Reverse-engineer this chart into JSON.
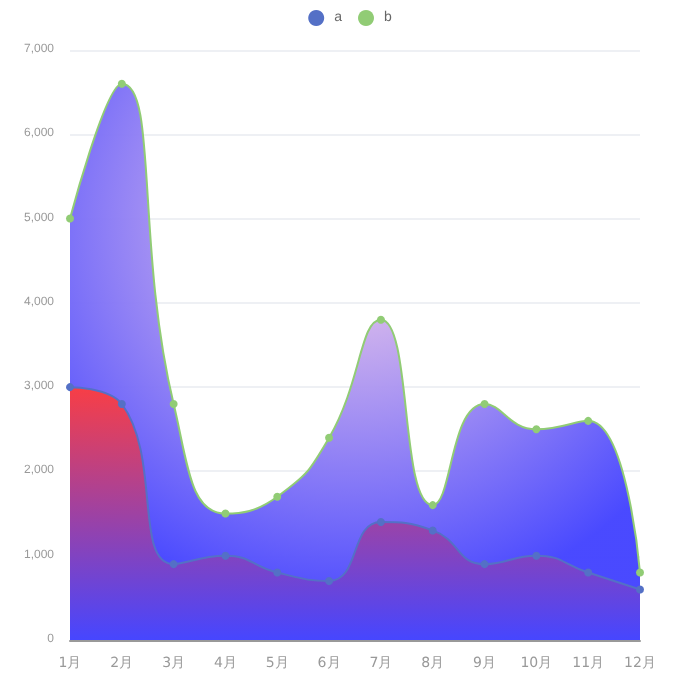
{
  "chart_data": {
    "type": "area",
    "categories": [
      "1月",
      "2月",
      "3月",
      "4月",
      "5月",
      "6月",
      "7月",
      "8月",
      "9月",
      "10月",
      "11月",
      "12月"
    ],
    "series": [
      {
        "name": "a",
        "color": "#5470c6",
        "values": [
          3000,
          2800,
          900,
          1000,
          800,
          700,
          1400,
          1300,
          900,
          1000,
          800,
          600
        ]
      },
      {
        "name": "b",
        "color": "#91cc75",
        "values": [
          5000,
          6600,
          2800,
          1500,
          1700,
          2400,
          3800,
          1600,
          2800,
          2500,
          2600,
          800
        ]
      }
    ],
    "ylim": [
      0,
      7000
    ],
    "yticks": [
      {
        "value": 0,
        "label": "0"
      },
      {
        "value": 1000,
        "label": "1,000"
      },
      {
        "value": 2000,
        "label": "2,000"
      },
      {
        "value": 3000,
        "label": "3,000"
      },
      {
        "value": 4000,
        "label": "4,000"
      },
      {
        "value": 5000,
        "label": "5,000"
      },
      {
        "value": 6000,
        "label": "6,000"
      },
      {
        "value": 7000,
        "label": "7,000"
      }
    ],
    "grid": "y",
    "legend": "top",
    "marker": "circle",
    "line_style": "solid"
  }
}
